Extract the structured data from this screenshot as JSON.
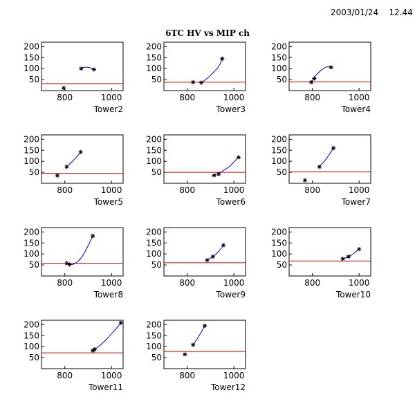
{
  "timestamp": "2003/01/24    12.44",
  "page_title": "6TC HV vs MIP ch",
  "colors": {
    "fit": "#0000cc",
    "threshold": "#dd0000",
    "marker": "#000000",
    "frame": "#000000"
  },
  "chart_data": [
    {
      "type": "scatter",
      "title": "Tower2",
      "xlim": [
        700,
        1050
      ],
      "ylim": [
        0,
        220
      ],
      "xticks": [
        800,
        1000
      ],
      "yticks": [
        50,
        100,
        150,
        200
      ],
      "threshold": 32,
      "points": [
        [
          795,
          12
        ],
        [
          870,
          100
        ],
        [
          925,
          96
        ]
      ],
      "fit": [
        [
          868,
          100
        ],
        [
          885,
          106
        ],
        [
          905,
          105
        ],
        [
          925,
          94
        ]
      ]
    },
    {
      "type": "scatter",
      "title": "Tower3",
      "xlim": [
        700,
        1050
      ],
      "ylim": [
        0,
        220
      ],
      "xticks": [
        800,
        1000
      ],
      "yticks": [
        50,
        100,
        150,
        200
      ],
      "threshold": 38,
      "points": [
        [
          825,
          38
        ],
        [
          860,
          36
        ],
        [
          950,
          145
        ]
      ],
      "fit": [
        [
          860,
          36
        ],
        [
          885,
          55
        ],
        [
          910,
          80
        ],
        [
          935,
          110
        ],
        [
          950,
          143
        ]
      ]
    },
    {
      "type": "scatter",
      "title": "Tower4",
      "xlim": [
        700,
        1050
      ],
      "ylim": [
        0,
        220
      ],
      "xticks": [
        800,
        1000
      ],
      "yticks": [
        50,
        100,
        150,
        200
      ],
      "threshold": 40,
      "points": [
        [
          795,
          38
        ],
        [
          808,
          55
        ],
        [
          880,
          106
        ]
      ],
      "fit": [
        [
          795,
          38
        ],
        [
          815,
          70
        ],
        [
          840,
          95
        ],
        [
          862,
          108
        ],
        [
          880,
          106
        ]
      ]
    },
    {
      "type": "scatter",
      "title": "Tower5",
      "xlim": [
        700,
        1050
      ],
      "ylim": [
        0,
        220
      ],
      "xticks": [
        800,
        1000
      ],
      "yticks": [
        50,
        100,
        150,
        200
      ],
      "threshold": 45,
      "points": [
        [
          768,
          35
        ],
        [
          808,
          75
        ],
        [
          868,
          142
        ]
      ],
      "fit": [
        [
          808,
          75
        ],
        [
          840,
          108
        ],
        [
          868,
          142
        ]
      ]
    },
    {
      "type": "scatter",
      "title": "Tower6",
      "xlim": [
        700,
        1050
      ],
      "ylim": [
        0,
        220
      ],
      "xticks": [
        800,
        1000
      ],
      "yticks": [
        50,
        100,
        150,
        200
      ],
      "threshold": 50,
      "points": [
        [
          915,
          36
        ],
        [
          935,
          42
        ],
        [
          1020,
          118
        ]
      ],
      "fit": [
        [
          915,
          36
        ],
        [
          950,
          55
        ],
        [
          985,
          80
        ],
        [
          1020,
          120
        ]
      ]
    },
    {
      "type": "scatter",
      "title": "Tower7",
      "xlim": [
        700,
        1050
      ],
      "ylim": [
        0,
        220
      ],
      "xticks": [
        800,
        1000
      ],
      "yticks": [
        50,
        100,
        150,
        200
      ],
      "threshold": 52,
      "points": [
        [
          768,
          14
        ],
        [
          830,
          75
        ],
        [
          890,
          160
        ]
      ],
      "fit": [
        [
          830,
          75
        ],
        [
          860,
          112
        ],
        [
          890,
          160
        ]
      ]
    },
    {
      "type": "scatter",
      "title": "Tower8",
      "xlim": [
        700,
        1050
      ],
      "ylim": [
        0,
        220
      ],
      "xticks": [
        800,
        1000
      ],
      "yticks": [
        50,
        100,
        150,
        200
      ],
      "threshold": 58,
      "points": [
        [
          808,
          58
        ],
        [
          820,
          52
        ],
        [
          920,
          182
        ]
      ],
      "fit": [
        [
          808,
          58
        ],
        [
          830,
          52
        ],
        [
          855,
          65
        ],
        [
          880,
          98
        ],
        [
          900,
          138
        ],
        [
          920,
          182
        ]
      ]
    },
    {
      "type": "scatter",
      "title": "Tower9",
      "xlim": [
        700,
        1050
      ],
      "ylim": [
        0,
        220
      ],
      "xticks": [
        800,
        1000
      ],
      "yticks": [
        50,
        100,
        150,
        200
      ],
      "threshold": 60,
      "points": [
        [
          885,
          72
        ],
        [
          910,
          88
        ],
        [
          955,
          140
        ]
      ],
      "fit": [
        [
          885,
          72
        ],
        [
          910,
          88
        ],
        [
          935,
          112
        ],
        [
          955,
          140
        ]
      ]
    },
    {
      "type": "scatter",
      "title": "Tower10",
      "xlim": [
        700,
        1050
      ],
      "ylim": [
        0,
        220
      ],
      "xticks": [
        800,
        1000
      ],
      "yticks": [
        50,
        100,
        150,
        200
      ],
      "threshold": 68,
      "points": [
        [
          930,
          78
        ],
        [
          955,
          88
        ],
        [
          1000,
          122
        ]
      ],
      "fit": [
        [
          930,
          78
        ],
        [
          955,
          88
        ],
        [
          980,
          105
        ],
        [
          1000,
          122
        ]
      ]
    },
    {
      "type": "scatter",
      "title": "Tower11",
      "xlim": [
        700,
        1050
      ],
      "ylim": [
        0,
        220
      ],
      "xticks": [
        800,
        1000
      ],
      "yticks": [
        50,
        100,
        150,
        200
      ],
      "threshold": 72,
      "points": [
        [
          920,
          82
        ],
        [
          928,
          88
        ],
        [
          1040,
          208
        ]
      ],
      "fit": [
        [
          920,
          82
        ],
        [
          950,
          105
        ],
        [
          980,
          135
        ],
        [
          1010,
          170
        ],
        [
          1040,
          208
        ]
      ]
    },
    {
      "type": "scatter",
      "title": "Tower12",
      "xlim": [
        700,
        1050
      ],
      "ylim": [
        0,
        220
      ],
      "xticks": [
        800,
        1000
      ],
      "yticks": [
        50,
        100,
        150,
        200
      ],
      "threshold": 78,
      "points": [
        [
          790,
          65
        ],
        [
          825,
          108
        ],
        [
          875,
          195
        ]
      ],
      "fit": [
        [
          825,
          108
        ],
        [
          850,
          148
        ],
        [
          875,
          195
        ]
      ]
    }
  ]
}
